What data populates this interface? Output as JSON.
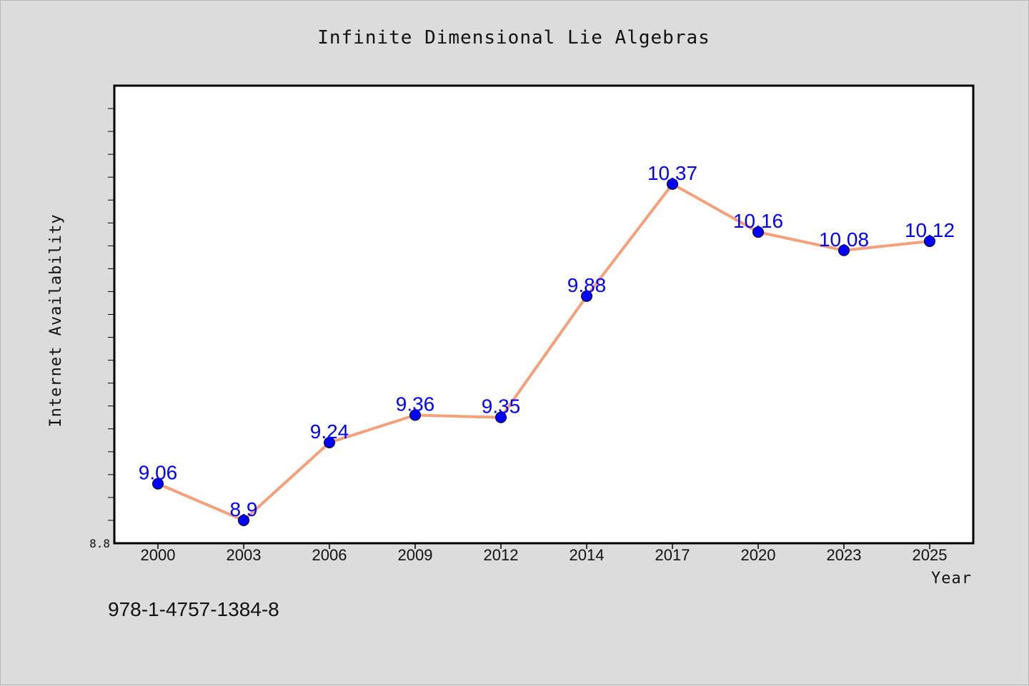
{
  "chart_data": {
    "type": "line",
    "title": "Infinite Dimensional Lie Algebras",
    "xlabel": "Year",
    "ylabel": "Internet Availability",
    "categories": [
      "2000",
      "2003",
      "2006",
      "2009",
      "2012",
      "2014",
      "2017",
      "2020",
      "2023",
      "2025"
    ],
    "series": [
      {
        "values": [
          9.06,
          8.9,
          9.24,
          9.36,
          9.35,
          9.88,
          10.37,
          10.16,
          10.08,
          10.12
        ],
        "labels": [
          "9.06",
          "8.9",
          "9.24",
          "9.36",
          "9.35",
          "9.88",
          "10.37",
          "10.16",
          "10.08",
          "10.12"
        ]
      }
    ],
    "ylim": [
      8.8,
      10.8
    ],
    "ytick_labels": [
      "8.8"
    ],
    "grid": false,
    "line_color": "#f4a07a",
    "marker_color": "#0000ff",
    "label_color": "#0000ff"
  },
  "footer_text": "978-1-4757-1384-8"
}
